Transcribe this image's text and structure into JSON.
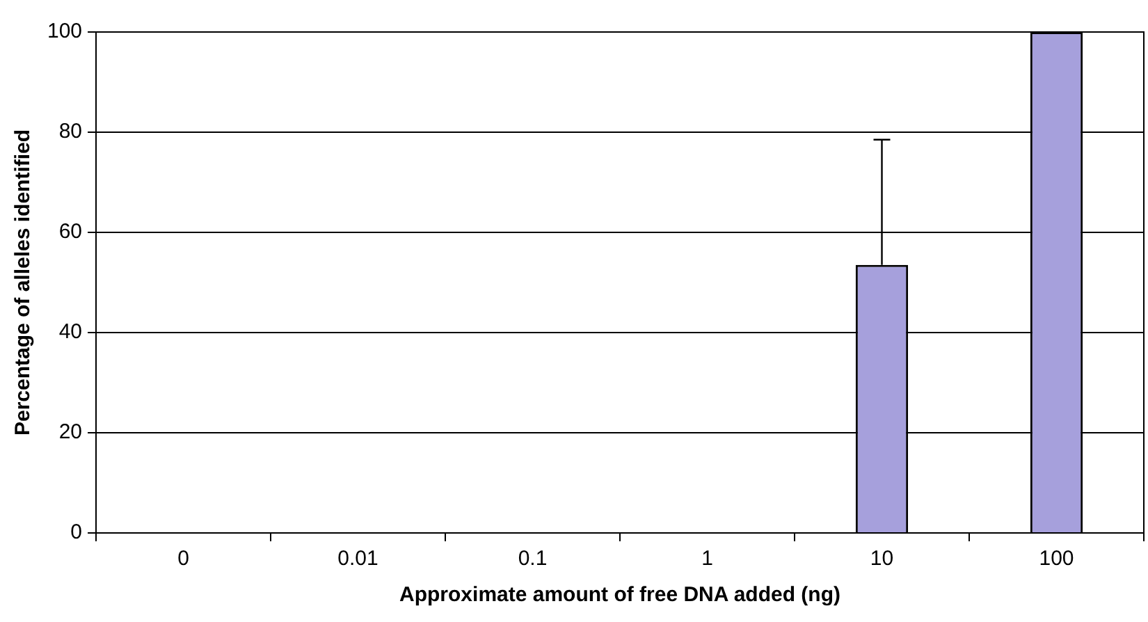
{
  "chart_data": {
    "type": "bar",
    "xlabel": "Approximate amount of free DNA added (ng)",
    "ylabel": "Percentage of alleles identified",
    "categories": [
      "0",
      "0.01",
      "0.1",
      "1",
      "10",
      "100"
    ],
    "values": [
      0,
      0,
      0,
      0,
      53.5,
      100
    ],
    "errors": [
      null,
      null,
      null,
      null,
      [
        53.5,
        78.5
      ],
      null
    ],
    "color": "#a6a0dc",
    "ylim": [
      0,
      100
    ],
    "yticks": [
      0,
      20,
      40,
      60,
      80,
      100
    ],
    "grid": "y",
    "legend": false
  }
}
